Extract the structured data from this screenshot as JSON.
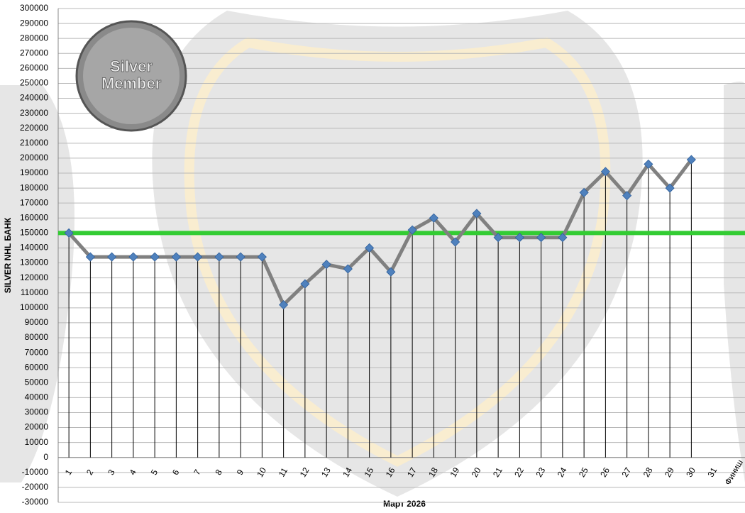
{
  "chart_data": {
    "type": "line",
    "y_label": "SILVER NHL  БАНК",
    "x_label": "Март 2026",
    "badge": [
      "Silver",
      "Member"
    ],
    "categories": [
      "1",
      "2",
      "3",
      "4",
      "5",
      "6",
      "7",
      "8",
      "9",
      "10",
      "11",
      "12",
      "13",
      "14",
      "15",
      "16",
      "17",
      "18",
      "19",
      "20",
      "21",
      "22",
      "23",
      "24",
      "25",
      "26",
      "27",
      "28",
      "29",
      "30",
      "31",
      "Финиш"
    ],
    "series": [
      {
        "color": "#808080",
        "marker_color": "#4f81bd",
        "values": [
          150000,
          134000,
          134000,
          134000,
          134000,
          134000,
          134000,
          134000,
          134000,
          134000,
          102000,
          116000,
          129000,
          126000,
          140000,
          124000,
          152000,
          160000,
          144000,
          163000,
          147000,
          147000,
          147000,
          147000,
          177000,
          191000,
          175000,
          196000,
          180000,
          199000,
          null,
          null
        ]
      }
    ],
    "reference_line": {
      "value": 150000,
      "color": "#33cc33"
    },
    "drop_lines": true,
    "ylim": [
      -30000,
      300000
    ],
    "yticks": [
      -30000,
      -20000,
      -10000,
      0,
      10000,
      20000,
      30000,
      40000,
      50000,
      60000,
      70000,
      80000,
      90000,
      100000,
      110000,
      120000,
      130000,
      140000,
      150000,
      160000,
      170000,
      180000,
      190000,
      200000,
      210000,
      220000,
      230000,
      240000,
      250000,
      260000,
      270000,
      280000,
      290000,
      300000
    ],
    "grid": true
  }
}
